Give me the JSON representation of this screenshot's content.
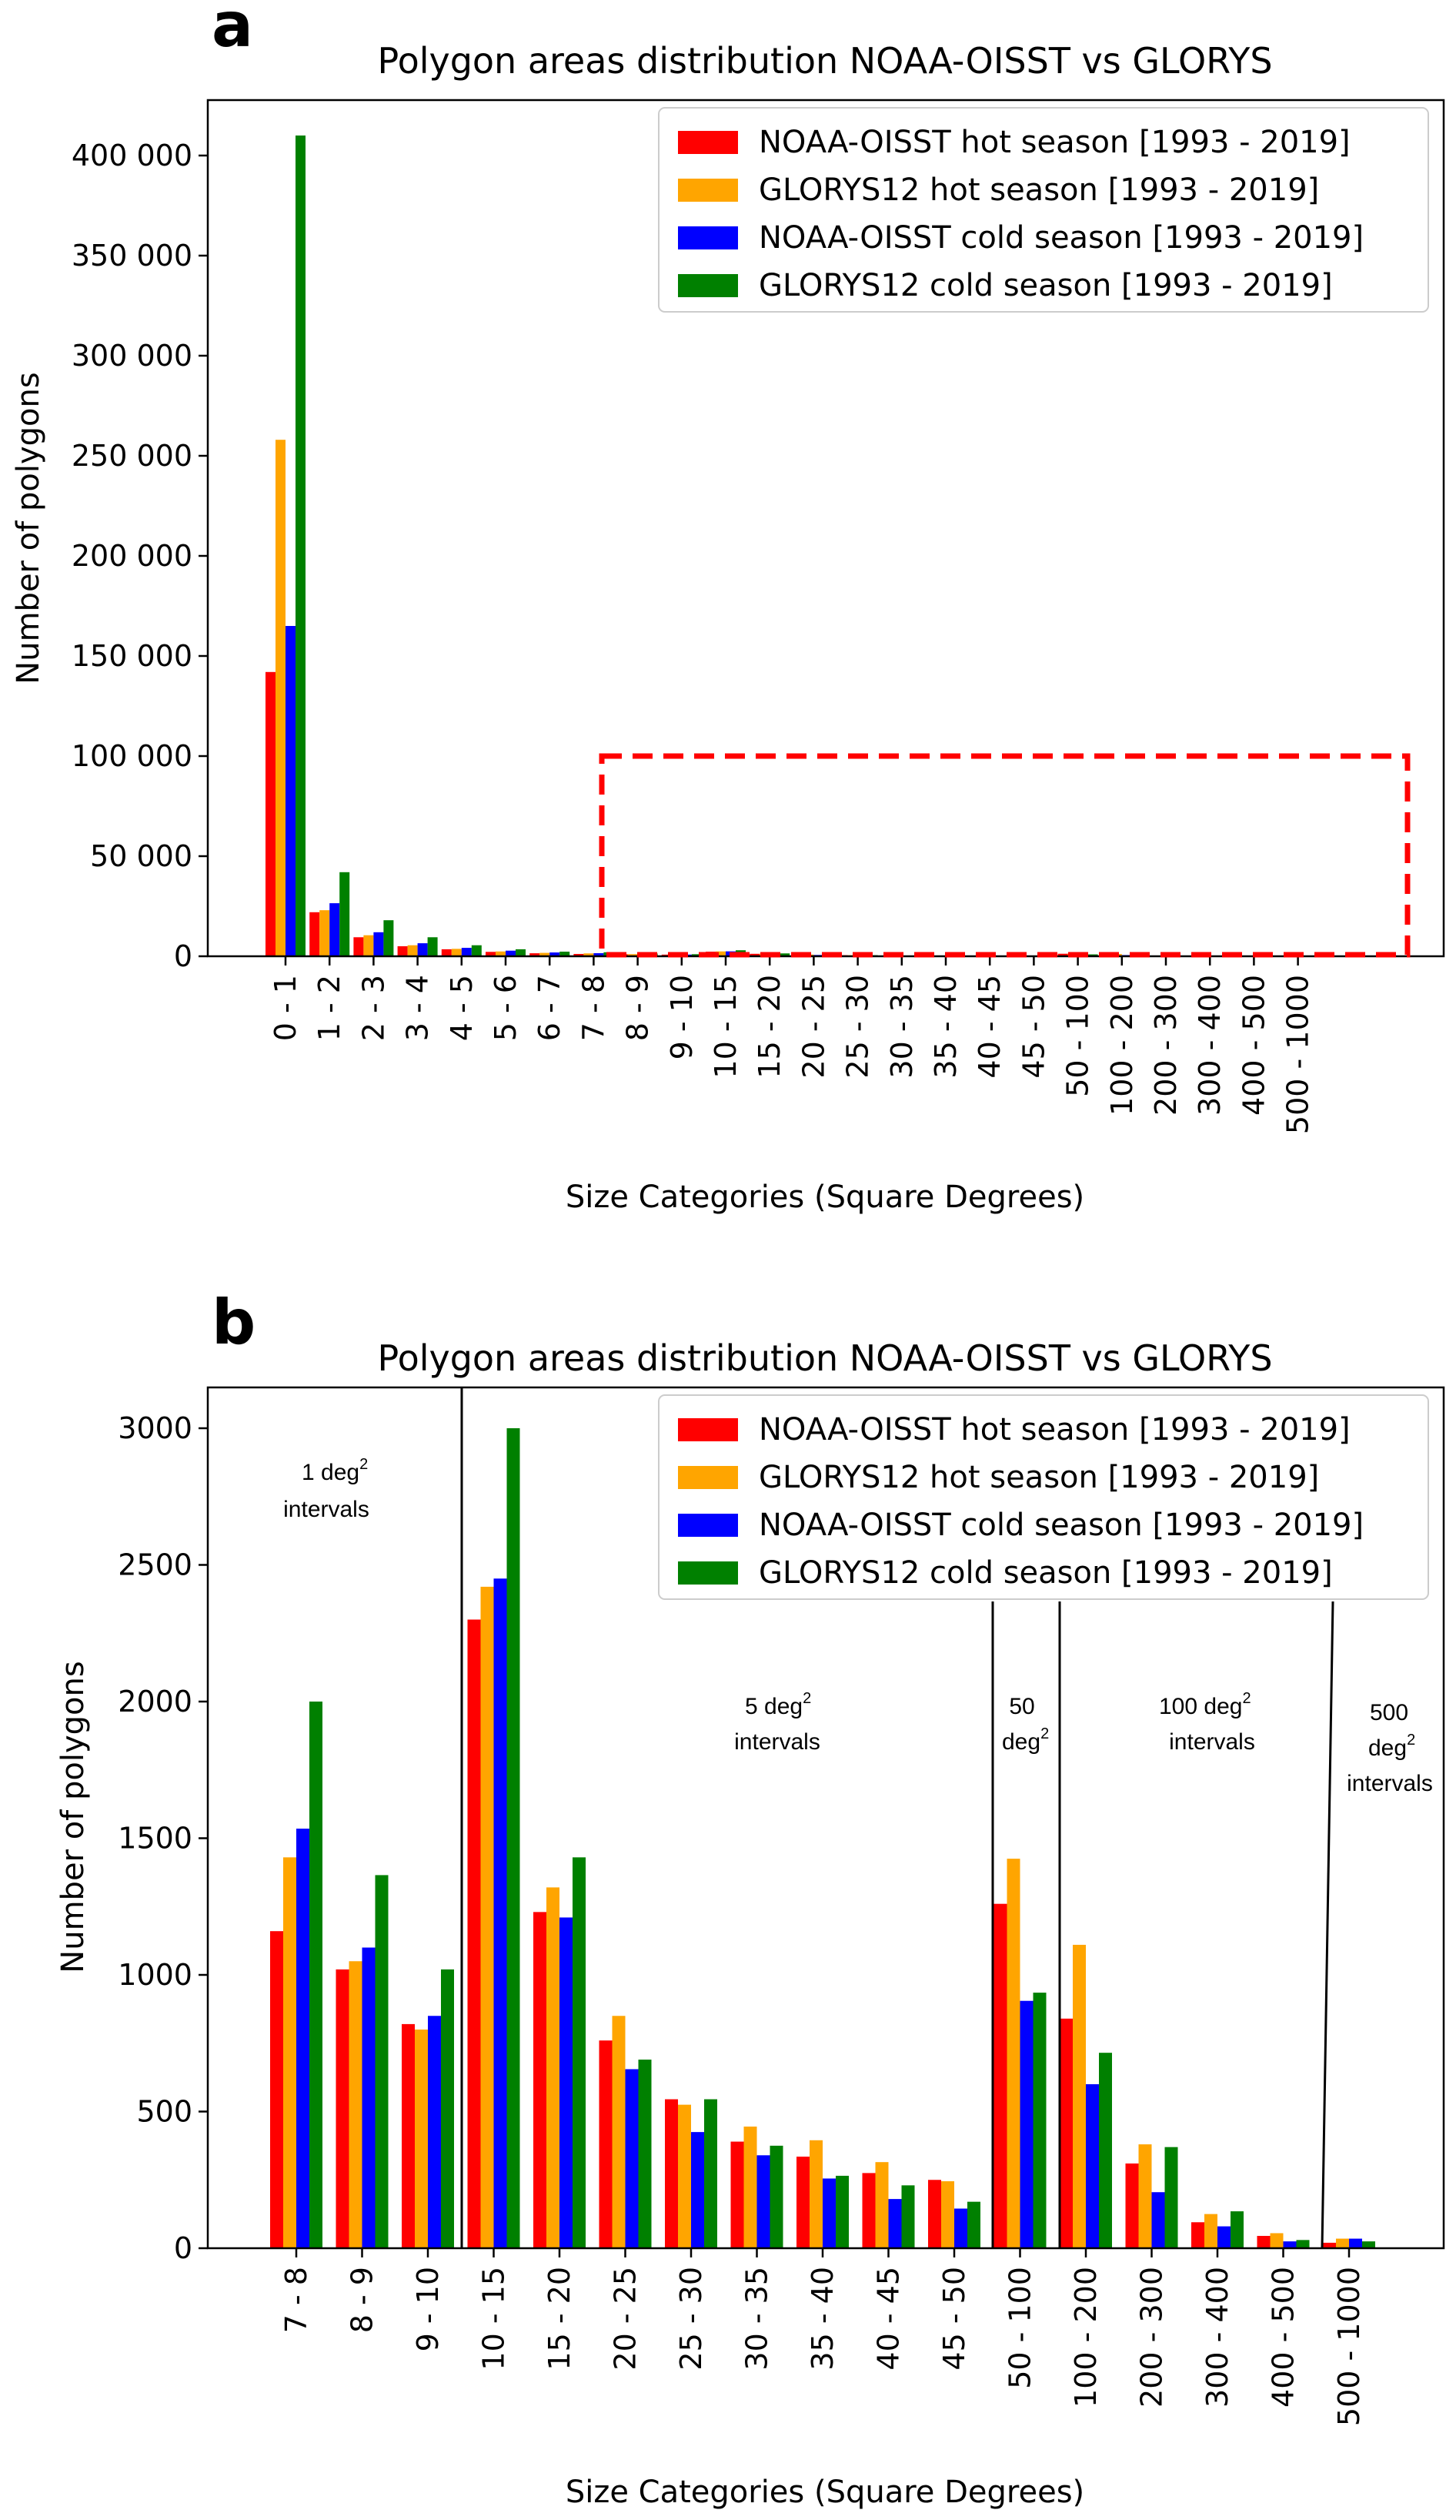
{
  "colors": {
    "hot_oisst": "#ff0000",
    "hot_glorys": "#ffa500",
    "cold_oisst": "#0000ff",
    "cold_glorys": "#008000",
    "highlight": "#ff0000"
  },
  "legend_entries": [
    "NOAA-OISST hot season [1993 - 2019]",
    "GLORYS12 hot season [1993 - 2019]",
    "NOAA-OISST cold season [1993 - 2019]",
    "GLORYS12 cold season [1993 - 2019]"
  ],
  "chart_data": [
    {
      "panel_label": "a",
      "type": "bar",
      "title": "Polygon areas distribution NOAA-OISST vs GLORYS",
      "xlabel": "Size Categories (Square Degrees)",
      "ylabel": "Number of polygons",
      "ylim": [
        0,
        425000
      ],
      "yticks": [
        0,
        50000,
        100000,
        150000,
        200000,
        250000,
        300000,
        350000,
        400000
      ],
      "ytick_labels": [
        "0",
        "50 000",
        "100 000",
        "150 000",
        "200 000",
        "250 000",
        "300 000",
        "350 000",
        "400 000"
      ],
      "legend_position": "top-right",
      "categories": [
        "0 - 1",
        "1 - 2",
        "2 - 3",
        "3 - 4",
        "4 - 5",
        "5 - 6",
        "6 - 7",
        "7 - 8",
        "8 - 9",
        "9 - 10",
        "10 - 15",
        "15 - 20",
        "20 - 25",
        "25 - 30",
        "30 - 35",
        "35 - 40",
        "40 - 45",
        "45 - 50",
        "50 - 100",
        "100 - 200",
        "200 - 300",
        "300 - 400",
        "400 - 500",
        "500 - 1000"
      ],
      "series": [
        {
          "name": "NOAA-OISST hot season [1993 - 2019]",
          "values": [
            142000,
            22000,
            9500,
            5000,
            3500,
            2200,
            1500,
            1160,
            1020,
            820,
            2300,
            1230,
            760,
            545,
            390,
            335,
            275,
            250,
            1260,
            840,
            310,
            95,
            45,
            20
          ]
        },
        {
          "name": "GLORYS12 hot season [1993 - 2019]",
          "values": [
            258000,
            23000,
            10500,
            5500,
            3700,
            2400,
            1700,
            1430,
            1050,
            800,
            2420,
            1320,
            850,
            525,
            445,
            395,
            315,
            245,
            1425,
            1110,
            380,
            125,
            55,
            35
          ]
        },
        {
          "name": "NOAA-OISST cold season [1993 - 2019]",
          "values": [
            165000,
            26500,
            12000,
            6500,
            4200,
            2800,
            1900,
            1535,
            1100,
            850,
            2450,
            1210,
            655,
            425,
            340,
            255,
            180,
            145,
            905,
            600,
            205,
            80,
            25,
            35
          ]
        },
        {
          "name": "GLORYS12 cold season [1993 - 2019]",
          "values": [
            410000,
            42000,
            18000,
            9500,
            5500,
            3500,
            2300,
            2000,
            1365,
            1020,
            3000,
            1430,
            690,
            545,
            375,
            265,
            230,
            170,
            935,
            715,
            370,
            135,
            30,
            25
          ]
        }
      ],
      "highlight_box": {
        "from_category": "7 - 8",
        "to_category": "500 - 1000",
        "y_top": 100000
      }
    },
    {
      "panel_label": "b",
      "type": "bar",
      "title": "Polygon areas distribution NOAA-OISST vs GLORYS",
      "xlabel": "Size Categories (Square Degrees)",
      "ylabel": "Number of polygons",
      "ylim": [
        0,
        3150
      ],
      "yticks": [
        0,
        500,
        1000,
        1500,
        2000,
        2500,
        3000
      ],
      "ytick_labels": [
        "0",
        "500",
        "1000",
        "1500",
        "2000",
        "2500",
        "3000"
      ],
      "legend_position": "top-right",
      "categories": [
        "7 - 8",
        "8 - 9",
        "9 - 10",
        "10 - 15",
        "15 - 20",
        "20 - 25",
        "25 - 30",
        "30 - 35",
        "35 - 40",
        "40 - 45",
        "45 - 50",
        "50 - 100",
        "100 - 200",
        "200 - 300",
        "300 - 400",
        "400 - 500",
        "500 - 1000"
      ],
      "series": [
        {
          "name": "NOAA-OISST hot season [1993 - 2019]",
          "values": [
            1160,
            1020,
            820,
            2300,
            1230,
            760,
            545,
            390,
            335,
            275,
            250,
            1260,
            840,
            310,
            95,
            45,
            20
          ]
        },
        {
          "name": "GLORYS12 hot season [1993 - 2019]",
          "values": [
            1430,
            1050,
            800,
            2420,
            1320,
            850,
            525,
            445,
            395,
            315,
            245,
            1425,
            1110,
            380,
            125,
            55,
            35
          ]
        },
        {
          "name": "NOAA-OISST cold season [1993 - 2019]",
          "values": [
            1535,
            1100,
            850,
            2450,
            1210,
            655,
            425,
            340,
            255,
            180,
            145,
            905,
            600,
            205,
            80,
            25,
            35
          ]
        },
        {
          "name": "GLORYS12 cold season [1993 - 2019]",
          "values": [
            2000,
            1365,
            1020,
            3000,
            1430,
            690,
            545,
            375,
            265,
            230,
            170,
            935,
            715,
            370,
            135,
            30,
            25
          ]
        }
      ],
      "annotations": [
        {
          "main": "1 deg",
          "sup": "2",
          "line2": "intervals"
        },
        {
          "main": "5 deg",
          "sup": "2",
          "line2": "intervals"
        },
        {
          "main": "50",
          "line2_main": "deg",
          "line2_sup": "2"
        },
        {
          "main": "100 deg",
          "sup": "2",
          "line2": "intervals"
        },
        {
          "main": "500",
          "line2_main": "deg",
          "line2_sup": "2",
          "line3": "intervals"
        }
      ]
    }
  ]
}
